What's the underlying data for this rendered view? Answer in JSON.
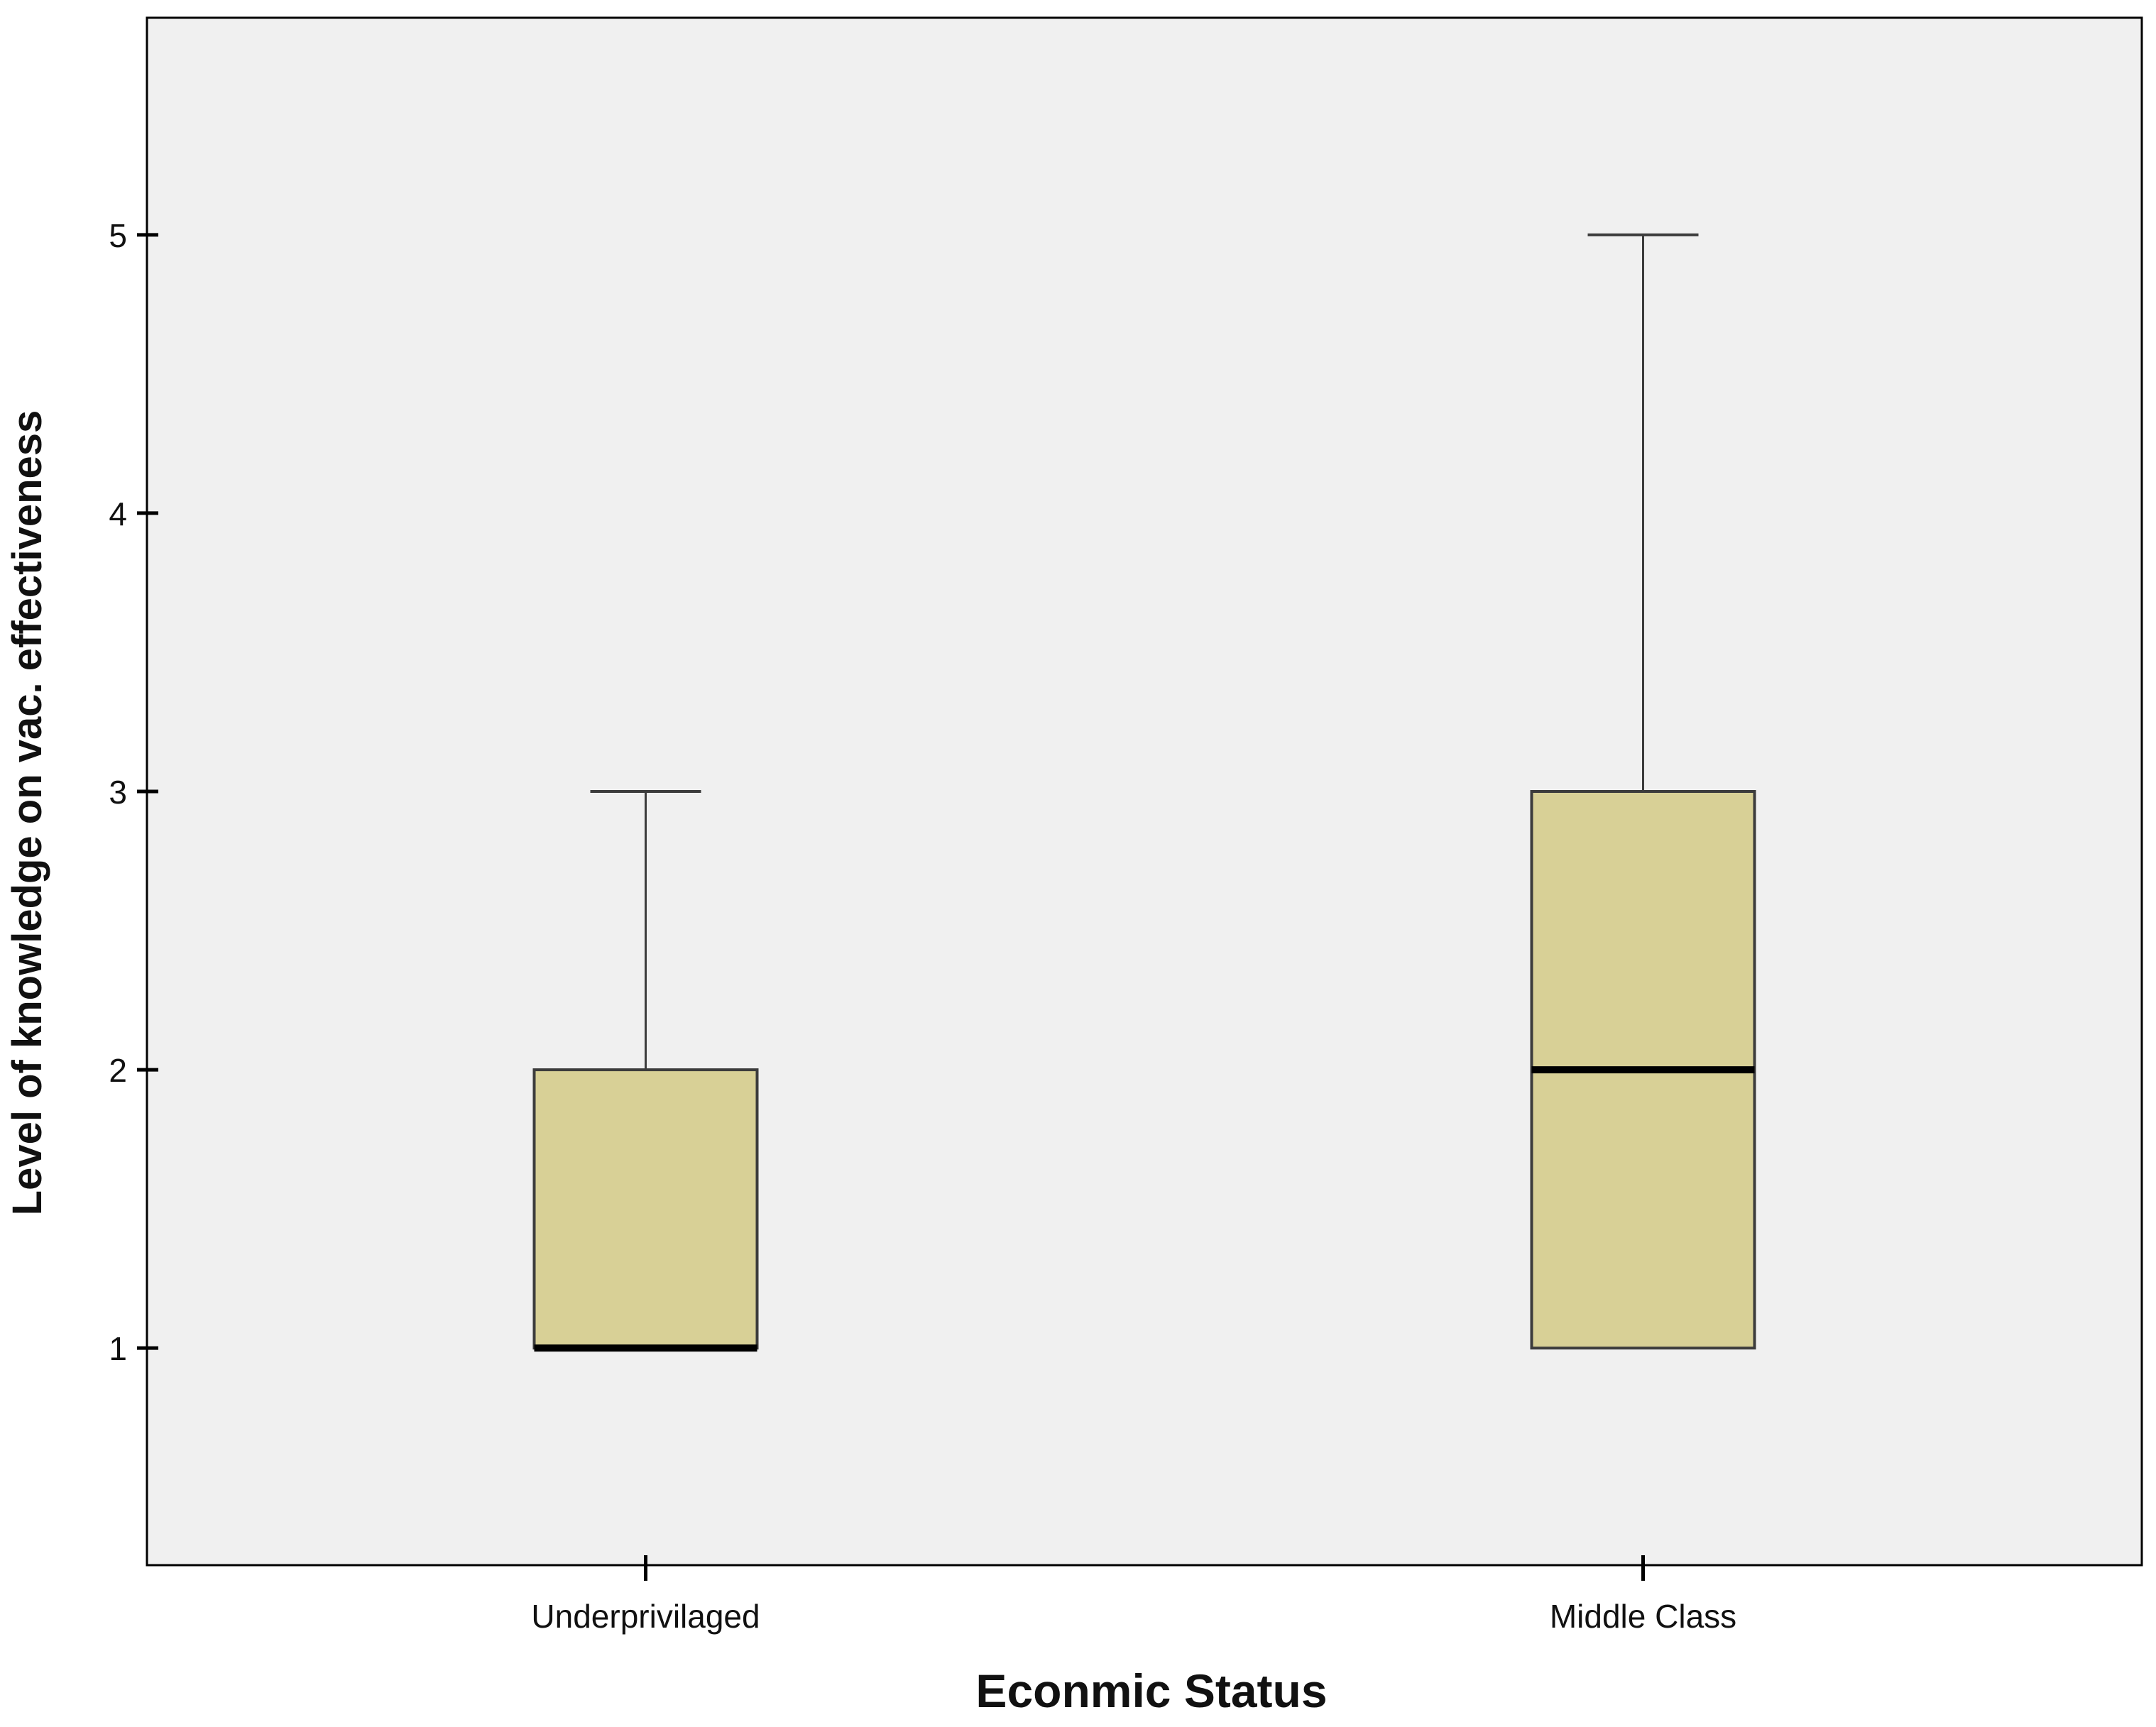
{
  "chart_data": {
    "type": "boxplot",
    "title": "",
    "xlabel": "Econmic Status",
    "ylabel": "Level of knowledge on vac. effectiveness",
    "categories": [
      "Underprivilaged",
      "Middle Class"
    ],
    "boxes": [
      {
        "category": "Underprivilaged",
        "min": 1,
        "q1": 1,
        "median": 1,
        "q3": 2,
        "max": 3
      },
      {
        "category": "Middle Class",
        "min": 1,
        "q1": 1,
        "median": 2,
        "q3": 3,
        "max": 5
      }
    ],
    "yticks": [
      1,
      2,
      3,
      4,
      5
    ],
    "ylim": [
      0.22,
      5.78
    ],
    "grid": false,
    "colors": {
      "plot_background": "#f0f0f0",
      "box_fill": "#d8d096",
      "box_stroke": "#3c3c3c",
      "median_stroke": "#000000",
      "whisker_stroke": "#3c3c3c",
      "axis": "#000000"
    }
  }
}
